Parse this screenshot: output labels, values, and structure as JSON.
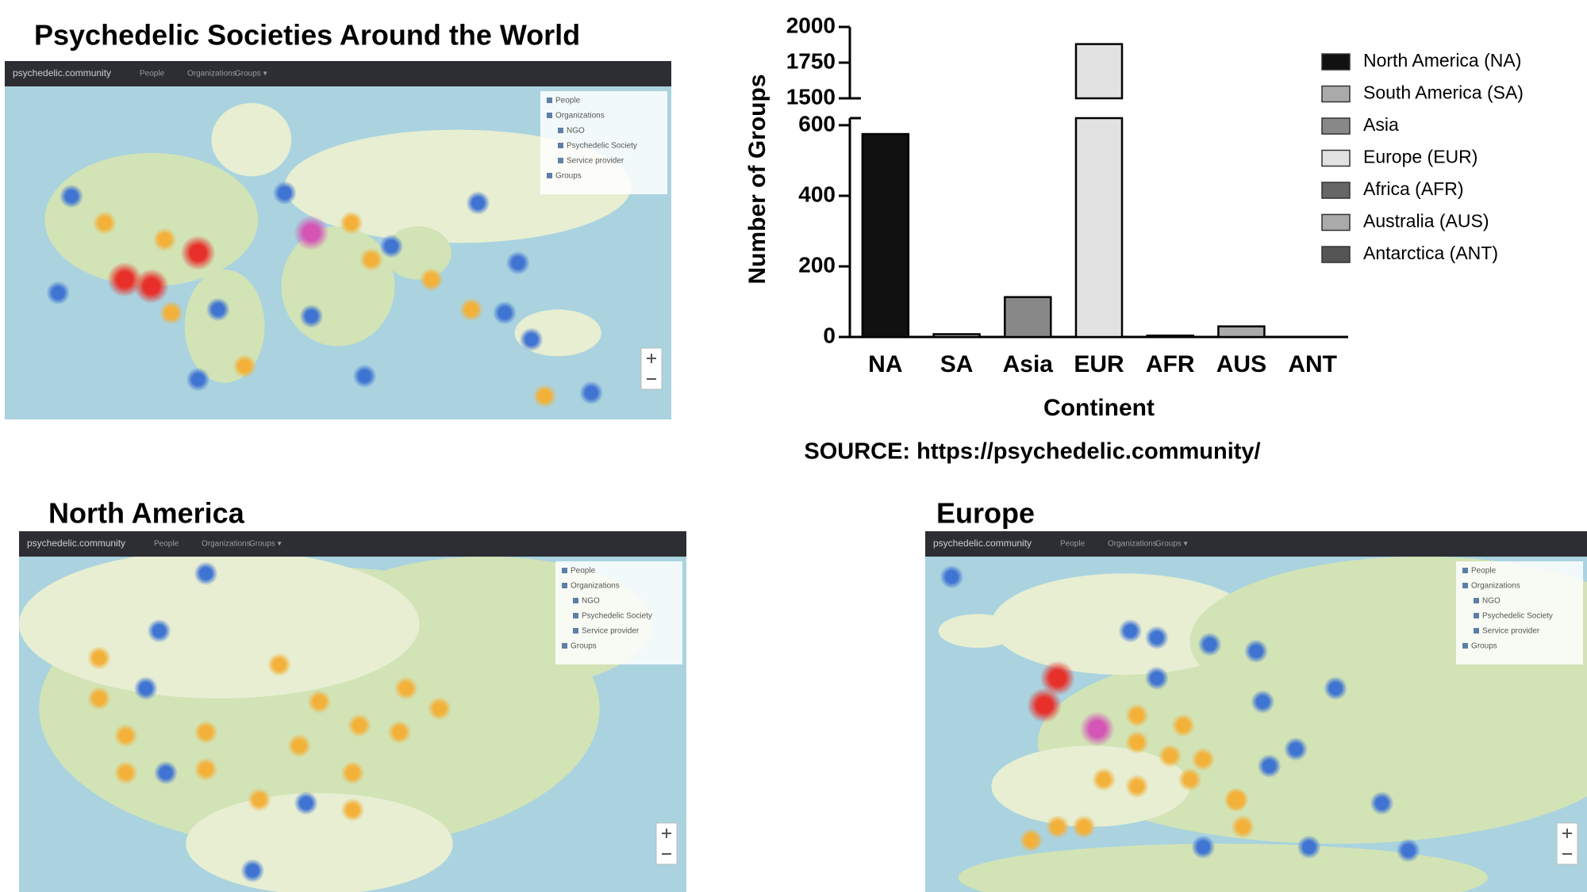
{
  "title": "Psychedelic Societies Around the World",
  "maps": [
    {
      "heading": "North America"
    },
    {
      "heading": "Europe"
    }
  ],
  "map_ui": {
    "brand": "psychedelic.community",
    "nav": [
      "People",
      "Organizations",
      "Groups ▾"
    ],
    "legend": [
      "People",
      "Organizations",
      "NGO",
      "Psychedelic Society",
      "Service provider",
      "Groups"
    ]
  },
  "source": "SOURCE: https://psychedelic.community/",
  "chart_data": {
    "type": "bar",
    "categories": [
      "NA",
      "SA",
      "Asia",
      "EUR",
      "AFR",
      "AUS",
      "ANT"
    ],
    "values": [
      575,
      8,
      113,
      1880,
      4,
      30,
      0
    ],
    "colors": [
      "#111111",
      "#aaaaaa",
      "#888888",
      "#e2e2e2",
      "#666666",
      "#aaaaaa",
      "#555555"
    ],
    "legend_labels": [
      "North America (NA)",
      "South America (SA)",
      "Asia",
      "Europe (EUR)",
      "Africa (AFR)",
      "Australia (AUS)",
      "Antarctica (ANT)"
    ],
    "x_label": "Continent",
    "y_label": "Number of Groups",
    "ylim": [
      0,
      2000
    ],
    "ylim_segments": [
      [
        0,
        620
      ],
      [
        1500,
        2000
      ]
    ],
    "yticks": [
      0,
      200,
      400,
      600,
      1500,
      1750,
      2000
    ],
    "grid": false
  }
}
